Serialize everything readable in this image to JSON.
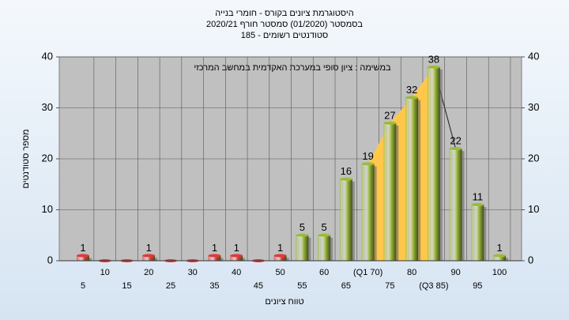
{
  "chart_data": {
    "type": "bar",
    "title": [
      "היסטוגרמת ציונים בקורס - חומרי בנייה",
      "בסמסטר (01/2020) סמסטר חורף 2020/21",
      "סטודנטים רשומים - 185"
    ],
    "subtitle": "במשימה : ציון סופי במערכת האקדמית במחשב המרכזי",
    "x_label": "טווח ציונים",
    "y_label": "מספר סטודנטים",
    "categories": [
      "5",
      "10",
      "15",
      "20",
      "25",
      "30",
      "35",
      "40",
      "45",
      "50",
      "55",
      "60",
      "65",
      "(Q1 70)",
      "75",
      "80",
      "(Q3 85)",
      "90",
      "95",
      "100"
    ],
    "values": [
      1,
      0,
      0,
      1,
      0,
      0,
      1,
      1,
      0,
      1,
      5,
      5,
      16,
      19,
      27,
      32,
      38,
      22,
      11,
      1
    ],
    "colors": [
      "#e03a3a",
      "#e03a3a",
      "#e03a3a",
      "#e03a3a",
      "#e03a3a",
      "#e03a3a",
      "#e03a3a",
      "#e03a3a",
      "#e03a3a",
      "#e03a3a",
      "#9bbb3c",
      "#9bbb3c",
      "#9bbb3c",
      "#9bbb3c",
      "#9bbb3c",
      "#9bbb3c",
      "#9bbb3c",
      "#9bbb3c",
      "#9bbb3c",
      "#9bbb3c"
    ],
    "quartile_color": "#ffc84a",
    "ylim": [
      0,
      40
    ],
    "yticks": [
      0,
      10,
      20,
      30,
      40
    ],
    "y2lim": [
      0,
      40
    ],
    "y2ticks": [
      0,
      10,
      20,
      30,
      40
    ],
    "grid": true
  }
}
